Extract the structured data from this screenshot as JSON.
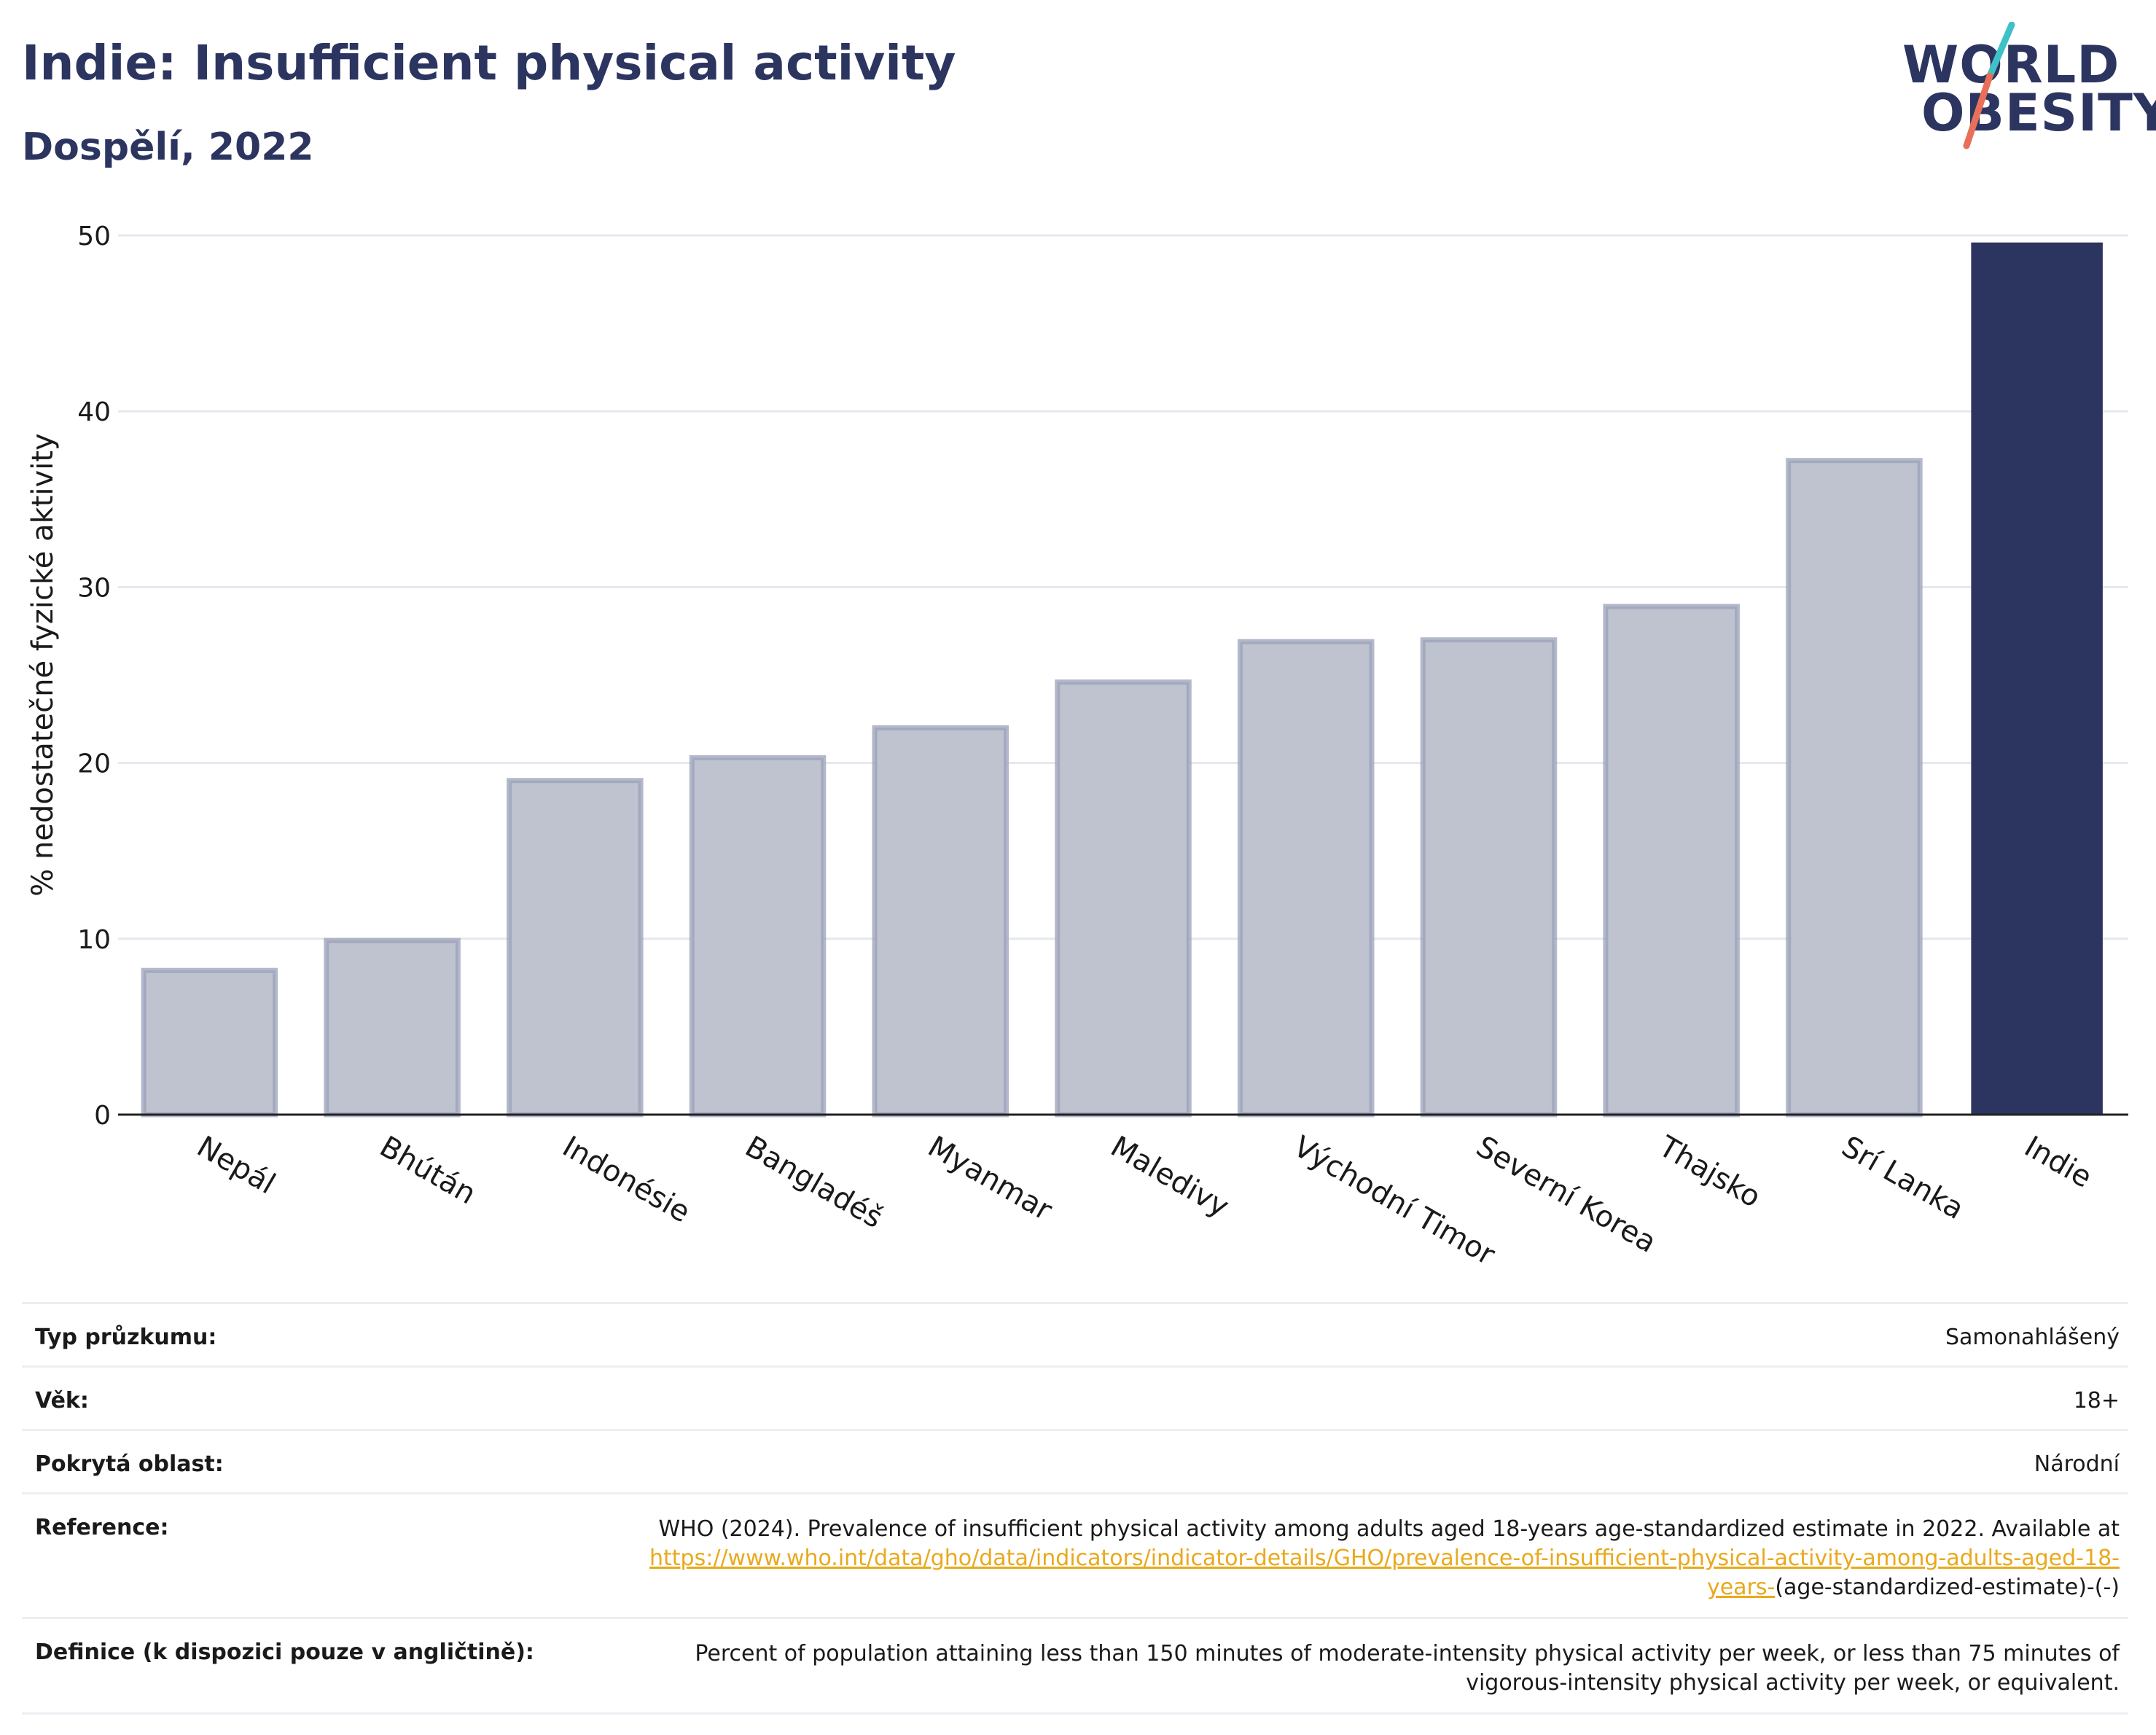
{
  "header": {
    "title": "Indie: Insufficient physical activity",
    "subtitle": "Dospělí, 2022"
  },
  "logo": {
    "line1": "WORLD",
    "line2": "OBESITY",
    "accent_colors": [
      "#3ec1c7",
      "#e8705a"
    ]
  },
  "colors": {
    "highlight_bar": "#2c3560",
    "other_bar_fill": "#bfc3d0",
    "other_bar_stroke": "#9aa0b8",
    "gridline": "#e6e8ef",
    "axis": "#222222"
  },
  "chart_data": {
    "type": "bar",
    "categories": [
      "Nepál",
      "Bhútán",
      "Indonésie",
      "Bangladéš",
      "Myanmar",
      "Maledivy",
      "Východní Timor",
      "Severní Korea",
      "Thajsko",
      "Srí Lanka",
      "Indie"
    ],
    "values": [
      8.2,
      9.9,
      19.0,
      20.3,
      22.0,
      24.6,
      26.9,
      27.0,
      28.9,
      37.2,
      49.6
    ],
    "highlight": "Indie",
    "ylabel": "% nedostatečné fyzické aktivity",
    "xlabel": "",
    "ylim": [
      0,
      50
    ],
    "yticks": [
      0,
      10,
      20,
      30,
      40,
      50
    ],
    "grid": true
  },
  "info_table": {
    "survey_type_label": "Typ průzkumu:",
    "survey_type_value": "Samonahlášený",
    "age_label": "Věk:",
    "age_value": "18+",
    "area_label": "Pokrytá oblast:",
    "area_value": "Národní",
    "reference_label": "Reference:",
    "reference_text": "WHO (2024). Prevalence of insufficient physical activity among adults aged 18-years age-standardized estimate in 2022. Available at",
    "reference_link": "https://www.who.int/data/gho/data/indicators/indicator-details/GHO/prevalence-of-insufficient-physical-activity-among-adults-aged-18-years-",
    "reference_suffix": "(age-standardized-estimate)-(-)",
    "definition_label": "Definice (k dispozici pouze v angličtině):",
    "definition_value": "Percent of population attaining less than 150 minutes of moderate-intensity physical activity per week, or less than 75 minutes of vigorous-intensity physical activity per week, or equivalent."
  }
}
